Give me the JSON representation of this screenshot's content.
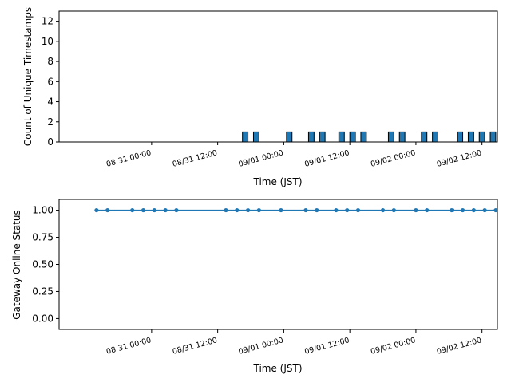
{
  "chart_data": [
    {
      "type": "bar",
      "xlabel": "Time (JST)",
      "ylabel": "Count of Unique Timestamps",
      "x_range": [
        "2025-08-30 07:12",
        "2025-09-02 14:48"
      ],
      "ylim": [
        0,
        13
      ],
      "yticks": [
        0,
        2,
        4,
        6,
        8,
        10,
        12
      ],
      "xticks": [
        {
          "t": "2025-08-31 00:00",
          "label": "08/31 00:00"
        },
        {
          "t": "2025-08-31 12:00",
          "label": "08/31 12:00"
        },
        {
          "t": "2025-09-01 00:00",
          "label": "09/01 00:00"
        },
        {
          "t": "2025-09-01 12:00",
          "label": "09/01 12:00"
        },
        {
          "t": "2025-09-02 00:00",
          "label": "09/02 00:00"
        },
        {
          "t": "2025-09-02 12:00",
          "label": "09/02 12:00"
        }
      ],
      "bar_width_hours": 1,
      "bar_color": "#1f77b4",
      "x": [
        "2025-08-31 17:00",
        "2025-08-31 19:00",
        "2025-09-01 01:00",
        "2025-09-01 05:00",
        "2025-09-01 07:00",
        "2025-09-01 10:30",
        "2025-09-01 12:30",
        "2025-09-01 14:30",
        "2025-09-01 19:30",
        "2025-09-01 21:30",
        "2025-09-02 01:30",
        "2025-09-02 03:30",
        "2025-09-02 08:00",
        "2025-09-02 10:00",
        "2025-09-02 12:00",
        "2025-09-02 14:00"
      ],
      "values": [
        1,
        1,
        1,
        1,
        1,
        1,
        1,
        1,
        1,
        1,
        1,
        1,
        1,
        1,
        1,
        1
      ]
    },
    {
      "type": "line",
      "xlabel": "Time (JST)",
      "ylabel": "Gateway Online Status",
      "x_range": [
        "2025-08-30 07:12",
        "2025-09-02 14:48"
      ],
      "ylim": [
        -0.1,
        1.1
      ],
      "yticks": [
        "0.00",
        "0.25",
        "0.50",
        "0.75",
        "1.00"
      ],
      "xticks": [
        {
          "t": "2025-08-31 00:00",
          "label": "08/31 00:00"
        },
        {
          "t": "2025-08-31 12:00",
          "label": "08/31 12:00"
        },
        {
          "t": "2025-09-01 00:00",
          "label": "09/01 00:00"
        },
        {
          "t": "2025-09-01 12:00",
          "label": "09/01 12:00"
        },
        {
          "t": "2025-09-02 00:00",
          "label": "09/02 00:00"
        },
        {
          "t": "2025-09-02 12:00",
          "label": "09/02 12:00"
        }
      ],
      "line_color": "#1f77b4",
      "x": [
        "2025-08-30 14:00",
        "2025-08-30 16:00",
        "2025-08-30 20:30",
        "2025-08-30 22:30",
        "2025-08-31 00:30",
        "2025-08-31 02:30",
        "2025-08-31 04:30",
        "2025-08-31 13:30",
        "2025-08-31 15:30",
        "2025-08-31 17:30",
        "2025-08-31 19:30",
        "2025-08-31 23:30",
        "2025-09-01 04:00",
        "2025-09-01 06:00",
        "2025-09-01 09:30",
        "2025-09-01 11:30",
        "2025-09-01 13:30",
        "2025-09-01 18:00",
        "2025-09-01 20:00",
        "2025-09-02 00:00",
        "2025-09-02 02:00",
        "2025-09-02 06:30",
        "2025-09-02 08:30",
        "2025-09-02 10:30",
        "2025-09-02 12:30",
        "2025-09-02 14:30"
      ],
      "values": [
        1,
        1,
        1,
        1,
        1,
        1,
        1,
        1,
        1,
        1,
        1,
        1,
        1,
        1,
        1,
        1,
        1,
        1,
        1,
        1,
        1,
        1,
        1,
        1,
        1,
        1
      ]
    }
  ]
}
